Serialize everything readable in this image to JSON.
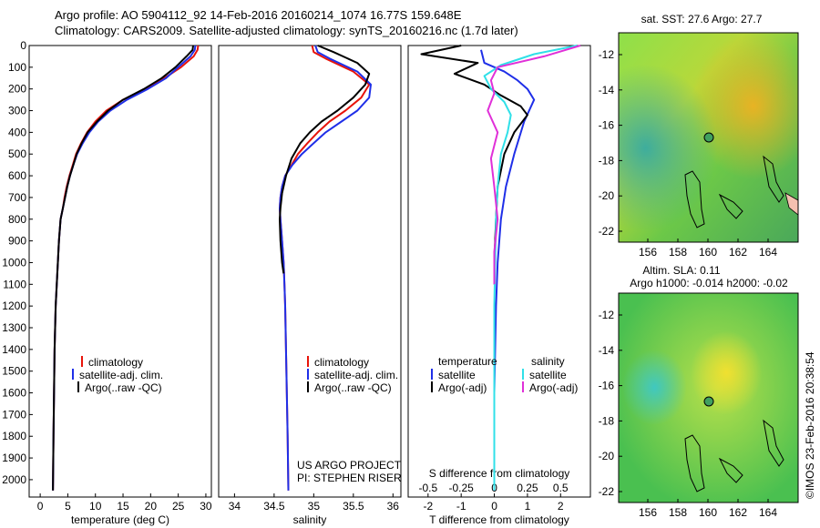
{
  "header": {
    "line1": "Argo profile: AO 5904112_92 14-Feb-2016 20160214_1074 16.77S 159.648E",
    "line2": "Climatology: CARS2009. Satellite-adjusted climatology: synTS_20160216.nc (1.7d later)"
  },
  "depth_ticks": [
    "0",
    "100",
    "200",
    "300",
    "400",
    "500",
    "600",
    "700",
    "800",
    "900",
    "1000",
    "1100",
    "1200",
    "1300",
    "1400",
    "1500",
    "1600",
    "1700",
    "1800",
    "1900",
    "2000"
  ],
  "colors": {
    "climatology": "#e8140a",
    "satellite": "#1f2fe8",
    "argo": "#000000",
    "salinity_sat": "#30e0e8",
    "salinity_argo": "#e030d8"
  },
  "panel_temp": {
    "xlabel": "temperature (deg C)",
    "xticks": [
      "0",
      "5",
      "10",
      "15",
      "20",
      "25",
      "30"
    ],
    "legend": [
      "climatology",
      "satellite-adj. clim.",
      "Argo(..raw -QC)"
    ]
  },
  "panel_sal": {
    "xlabel": "salinity",
    "xticks": [
      "34",
      "34.5",
      "35",
      "35.5",
      "36"
    ],
    "legend": [
      "climatology",
      "satellite-adj. clim.",
      "Argo(..raw -QC)"
    ],
    "credit1": "US ARGO PROJECT",
    "credit2": "PI: STEPHEN RISER"
  },
  "panel_diff": {
    "xlabel": "T difference from climatology",
    "top_label": "S difference from climatology",
    "top_ticks": [
      "-0.5",
      "-0.25",
      "0",
      "0.25",
      "0.5"
    ],
    "xticks": [
      "-2",
      "-1",
      "0",
      "1",
      "2"
    ],
    "legend_temp_title": "temperature",
    "legend_sal_title": "salinity",
    "legend_temp": [
      "satellite",
      "Argo(-adj)"
    ],
    "legend_sal": [
      "satellite",
      "Argo(-adj)"
    ]
  },
  "map_top": {
    "title": "sat. SST: 27.6 Argo: 27.7",
    "yticks": [
      "-12",
      "-14",
      "-16",
      "-18",
      "-20",
      "-22"
    ],
    "xticks": [
      "156",
      "158",
      "160",
      "162",
      "164"
    ]
  },
  "map_bottom": {
    "title1": "Altim. SLA: 0.11",
    "title2": "Argo h1000: -0.014 h2000: -0.02",
    "yticks": [
      "-12",
      "-14",
      "-16",
      "-18",
      "-20",
      "-22"
    ],
    "xticks": [
      "156",
      "158",
      "160",
      "162",
      "164"
    ]
  },
  "side_text": "©IMOS 23-Feb-2016 20:38:54",
  "chart_data": [
    {
      "type": "line",
      "xlabel": "temperature (deg C)",
      "ylabel": "",
      "xlim": [
        -2,
        31
      ],
      "ylim": [
        2080,
        0
      ],
      "series": [
        {
          "name": "climatology",
          "x": [
            28.6,
            28.5,
            27.8,
            25.5,
            22.5,
            19,
            15,
            12,
            10,
            8.5,
            7.4,
            6.5,
            5.9,
            5.3,
            4.8,
            4.4,
            4.1,
            3.7,
            3.4,
            3.2,
            3.0,
            2.8,
            2.6,
            2.5,
            2.4,
            2.3
          ],
          "y": [
            0,
            20,
            50,
            100,
            150,
            200,
            250,
            300,
            350,
            400,
            450,
            500,
            550,
            600,
            650,
            700,
            750,
            800,
            900,
            1000,
            1100,
            1200,
            1400,
            1600,
            1800,
            2050
          ]
        },
        {
          "name": "satellite-adj. clim.",
          "x": [
            28.1,
            28.0,
            27.2,
            25.0,
            22.8,
            19.5,
            15.7,
            12.7,
            10.5,
            8.9,
            7.7,
            6.7,
            6.0,
            5.4,
            4.9,
            4.5,
            4.1,
            3.7,
            3.4,
            3.2,
            3.0,
            2.8,
            2.6,
            2.5,
            2.4,
            2.3
          ],
          "y": [
            0,
            20,
            50,
            100,
            150,
            200,
            250,
            300,
            350,
            400,
            450,
            500,
            550,
            600,
            650,
            700,
            750,
            800,
            900,
            1000,
            1100,
            1200,
            1400,
            1600,
            1800,
            2050
          ]
        },
        {
          "name": "Argo(..raw -QC)",
          "x": [
            27.7,
            27.6,
            26.5,
            24.5,
            22.0,
            18.8,
            15.0,
            12.3,
            10.3,
            8.6,
            7.5,
            6.6,
            6.0,
            5.4,
            4.9,
            4.5,
            4.1,
            3.7,
            3.4,
            3.2,
            3.0,
            2.8,
            2.6,
            2.5,
            2.4,
            2.3
          ],
          "y": [
            0,
            20,
            50,
            100,
            150,
            200,
            250,
            300,
            350,
            400,
            450,
            500,
            550,
            600,
            650,
            700,
            750,
            800,
            900,
            1000,
            1100,
            1200,
            1400,
            1600,
            1800,
            2050
          ]
        }
      ]
    },
    {
      "type": "line",
      "xlabel": "salinity",
      "ylabel": "",
      "xlim": [
        33.8,
        36.1
      ],
      "ylim": [
        2080,
        0
      ],
      "series": [
        {
          "name": "climatology",
          "x": [
            34.98,
            35.0,
            35.15,
            35.5,
            35.7,
            35.6,
            35.4,
            35.2,
            35.05,
            34.92,
            34.8,
            34.72,
            34.64,
            34.6,
            34.58,
            34.57,
            34.58,
            34.6,
            34.62,
            34.63,
            34.64,
            34.65,
            34.66,
            34.67,
            34.68
          ],
          "y": [
            0,
            30,
            60,
            120,
            180,
            240,
            300,
            350,
            400,
            450,
            500,
            550,
            600,
            650,
            700,
            750,
            800,
            900,
            1000,
            1100,
            1200,
            1400,
            1600,
            1800,
            2050
          ]
        },
        {
          "name": "satellite-adj. clim.",
          "x": [
            35.02,
            35.05,
            35.2,
            35.55,
            35.72,
            35.7,
            35.55,
            35.35,
            35.15,
            35.0,
            34.85,
            34.73,
            34.64,
            34.6,
            34.58,
            34.57,
            34.58,
            34.6,
            34.62,
            34.63,
            34.64,
            34.65,
            34.66,
            34.67,
            34.68
          ],
          "y": [
            0,
            30,
            60,
            120,
            180,
            240,
            300,
            350,
            400,
            450,
            500,
            550,
            600,
            650,
            700,
            750,
            800,
            900,
            1000,
            1100,
            1200,
            1400,
            1600,
            1800,
            2050
          ]
        },
        {
          "name": "Argo(..raw -QC)",
          "x": [
            35.05,
            35.25,
            35.55,
            35.7,
            35.65,
            35.5,
            35.3,
            35.1,
            34.95,
            34.83,
            34.72,
            34.65,
            34.6,
            34.58,
            34.57,
            34.58,
            34.6,
            34.62
          ],
          "y": [
            0,
            30,
            80,
            130,
            180,
            240,
            300,
            350,
            400,
            450,
            520,
            600,
            680,
            750,
            800,
            900,
            1000,
            1050
          ]
        }
      ]
    },
    {
      "type": "line",
      "xlabel": "T difference from climatology",
      "ylabel": "",
      "xlim": [
        -2.6,
        2.9
      ],
      "ylim": [
        2080,
        0
      ],
      "series": [
        {
          "name": "temperature satellite",
          "x": [
            -0.4,
            -0.3,
            0.3,
            0.7,
            1.0,
            1.2,
            0.9,
            0.6,
            0.35,
            0.2,
            0.1,
            0.05,
            0.0,
            0.0
          ],
          "y": [
            20,
            80,
            120,
            160,
            200,
            250,
            350,
            500,
            650,
            800,
            1000,
            1200,
            1600,
            2050
          ]
        },
        {
          "name": "temperature Argo(-adj)",
          "x": [
            -1.0,
            -2.2,
            -0.5,
            -1.2,
            -0.3,
            0.2,
            0.8,
            1.0,
            0.6,
            0.3,
            0.1,
            0.05,
            0.0,
            0.0
          ],
          "y": [
            0,
            40,
            80,
            130,
            180,
            230,
            280,
            320,
            400,
            500,
            650,
            800,
            1000,
            1100
          ]
        },
        {
          "name": "salinity satellite",
          "x": [
            2.5,
            1.2,
            0.2,
            -0.3,
            -0.1,
            0.3,
            0.5,
            0.4,
            0.2,
            0.1,
            0.05,
            0.0,
            0.0
          ],
          "y": [
            0,
            40,
            90,
            140,
            200,
            260,
            320,
            400,
            500,
            650,
            800,
            1200,
            2050
          ]
        },
        {
          "name": "salinity Argo(-adj)",
          "x": [
            2.6,
            1.5,
            0.1,
            -0.1,
            0.0,
            -0.2,
            0.1,
            -0.1,
            0.0,
            0.1,
            0.0,
            0.0
          ],
          "y": [
            0,
            50,
            100,
            160,
            220,
            300,
            400,
            520,
            650,
            800,
            950,
            1100
          ]
        }
      ]
    }
  ]
}
